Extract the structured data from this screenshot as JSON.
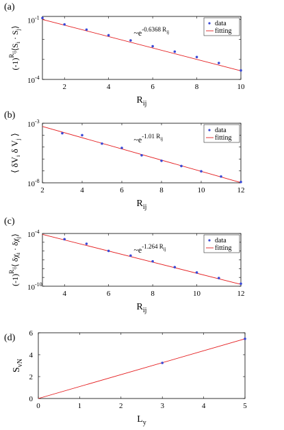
{
  "chart_data": [
    {
      "type": "scatter",
      "panel_label": "(a)",
      "xlabel": "R",
      "xlabel_sub": "ij",
      "ylabel": "(-1)^{R_ij}⟨S_i · S_j⟩",
      "ylabel_parts": {
        "base": "(-1)",
        "sup": "R",
        "supsub": "ij",
        "rest": "⟨S",
        "s1": "i",
        "dot": " · S",
        "s2": "j",
        "close": "⟩"
      },
      "xlim": [
        1,
        10
      ],
      "ylim_log10": [
        -4,
        -0.85
      ],
      "y_scale": "log",
      "xticks": [
        2,
        4,
        6,
        8,
        10
      ],
      "yticks": [
        {
          "value": -1,
          "label": "10",
          "exp": "-1"
        },
        {
          "value": -4,
          "label": "10",
          "exp": "-4"
        }
      ],
      "series": [
        {
          "name": "data",
          "kind": "points",
          "x": [
            1,
            2,
            3,
            4,
            5,
            6,
            7,
            8,
            9,
            10
          ],
          "log10_y": [
            -0.93,
            -1.25,
            -1.51,
            -1.79,
            -2.05,
            -2.34,
            -2.61,
            -2.88,
            -3.18,
            -3.55
          ]
        },
        {
          "name": "fitting",
          "kind": "line",
          "x": [
            1,
            10
          ],
          "log10_y": [
            -1.0,
            -3.57
          ]
        }
      ],
      "annotation": {
        "base": "~e",
        "exp": "-0.6368 R",
        "exp_sub": "ij"
      },
      "legend_position": "top-right"
    },
    {
      "type": "scatter",
      "panel_label": "(b)",
      "xlabel": "R",
      "xlabel_sub": "ij",
      "ylabel": "⟨δV_i δV_j⟩",
      "ylabel_parts": {
        "open": "⟨ δV",
        "s1": "i",
        "mid": " δ V",
        "s2": "j",
        "close": " ⟩"
      },
      "xlim": [
        2,
        12
      ],
      "ylim_log10": [
        -8,
        -3
      ],
      "y_scale": "log",
      "xticks": [
        2,
        4,
        6,
        8,
        10,
        12
      ],
      "yticks": [
        {
          "value": -3,
          "label": "10",
          "exp": "-3"
        },
        {
          "value": -8,
          "label": "10",
          "exp": "-8"
        }
      ],
      "series": [
        {
          "name": "data",
          "kind": "points",
          "x": [
            3,
            4,
            5,
            6,
            7,
            8,
            9,
            10,
            11,
            12
          ],
          "log10_y": [
            -3.84,
            -4.0,
            -4.71,
            -5.07,
            -5.69,
            -6.15,
            -6.59,
            -7.03,
            -7.47,
            -7.93
          ]
        },
        {
          "name": "fitting",
          "kind": "line",
          "x": [
            2,
            12
          ],
          "log10_y": [
            -3.27,
            -7.98
          ]
        }
      ],
      "annotation": {
        "base": "~e",
        "exp": "-1.01 R",
        "exp_sub": "ij"
      },
      "legend_position": "top-right"
    },
    {
      "type": "scatter",
      "panel_label": "(c)",
      "xlabel": "R",
      "xlabel_sub": "ij",
      "ylabel": "(-1)^{R_ij}⟨δχ_i · δχ_j⟩",
      "ylabel_parts": {
        "base": "(-1)",
        "sup": "R",
        "supsub": "ij",
        "rest": "⟨ δχ",
        "s1": "i",
        "dot": " · δχ",
        "s2": "j",
        "close": "⟩"
      },
      "xlim": [
        3,
        12
      ],
      "ylim_log10": [
        -10,
        -4
      ],
      "y_scale": "log",
      "xticks": [
        4,
        6,
        8,
        10,
        12
      ],
      "yticks": [
        {
          "value": -4,
          "label": "10",
          "exp": "-4"
        },
        {
          "value": -10,
          "label": "10",
          "exp": "-10"
        }
      ],
      "series": [
        {
          "name": "data",
          "kind": "points",
          "x": [
            4,
            5,
            6,
            7,
            8,
            9,
            10,
            11,
            12
          ],
          "log10_y": [
            -4.65,
            -5.17,
            -5.98,
            -6.52,
            -7.17,
            -7.83,
            -8.44,
            -9.07,
            -9.71
          ]
        },
        {
          "name": "fitting",
          "kind": "line",
          "x": [
            3,
            12
          ],
          "log10_y": [
            -4.1,
            -9.79
          ]
        }
      ],
      "annotation": {
        "base": "~e",
        "exp": "-1.264 R",
        "exp_sub": "ij"
      },
      "legend_position": "top-right"
    },
    {
      "type": "line",
      "panel_label": "(d)",
      "xlabel": "L",
      "xlabel_sub": "y",
      "ylabel": "S_vN",
      "ylabel_parts": {
        "base": "S",
        "sub": "vN"
      },
      "xlim": [
        0,
        5
      ],
      "ylim": [
        0,
        6
      ],
      "y_scale": "linear",
      "xticks": [
        0,
        1,
        2,
        3,
        4,
        5
      ],
      "yticks": [
        0,
        2,
        4,
        6
      ],
      "series": [
        {
          "name": "data",
          "kind": "points",
          "x": [
            3,
            5
          ],
          "y": [
            3.25,
            5.45
          ]
        },
        {
          "name": "fitting",
          "kind": "line",
          "x": [
            0,
            5
          ],
          "y": [
            0,
            5.45
          ]
        }
      ]
    }
  ],
  "legend": {
    "data_label": "data",
    "fit_label": "fitting"
  },
  "colors": {
    "data": "#3a49d6",
    "fit": "#e41a1c"
  }
}
